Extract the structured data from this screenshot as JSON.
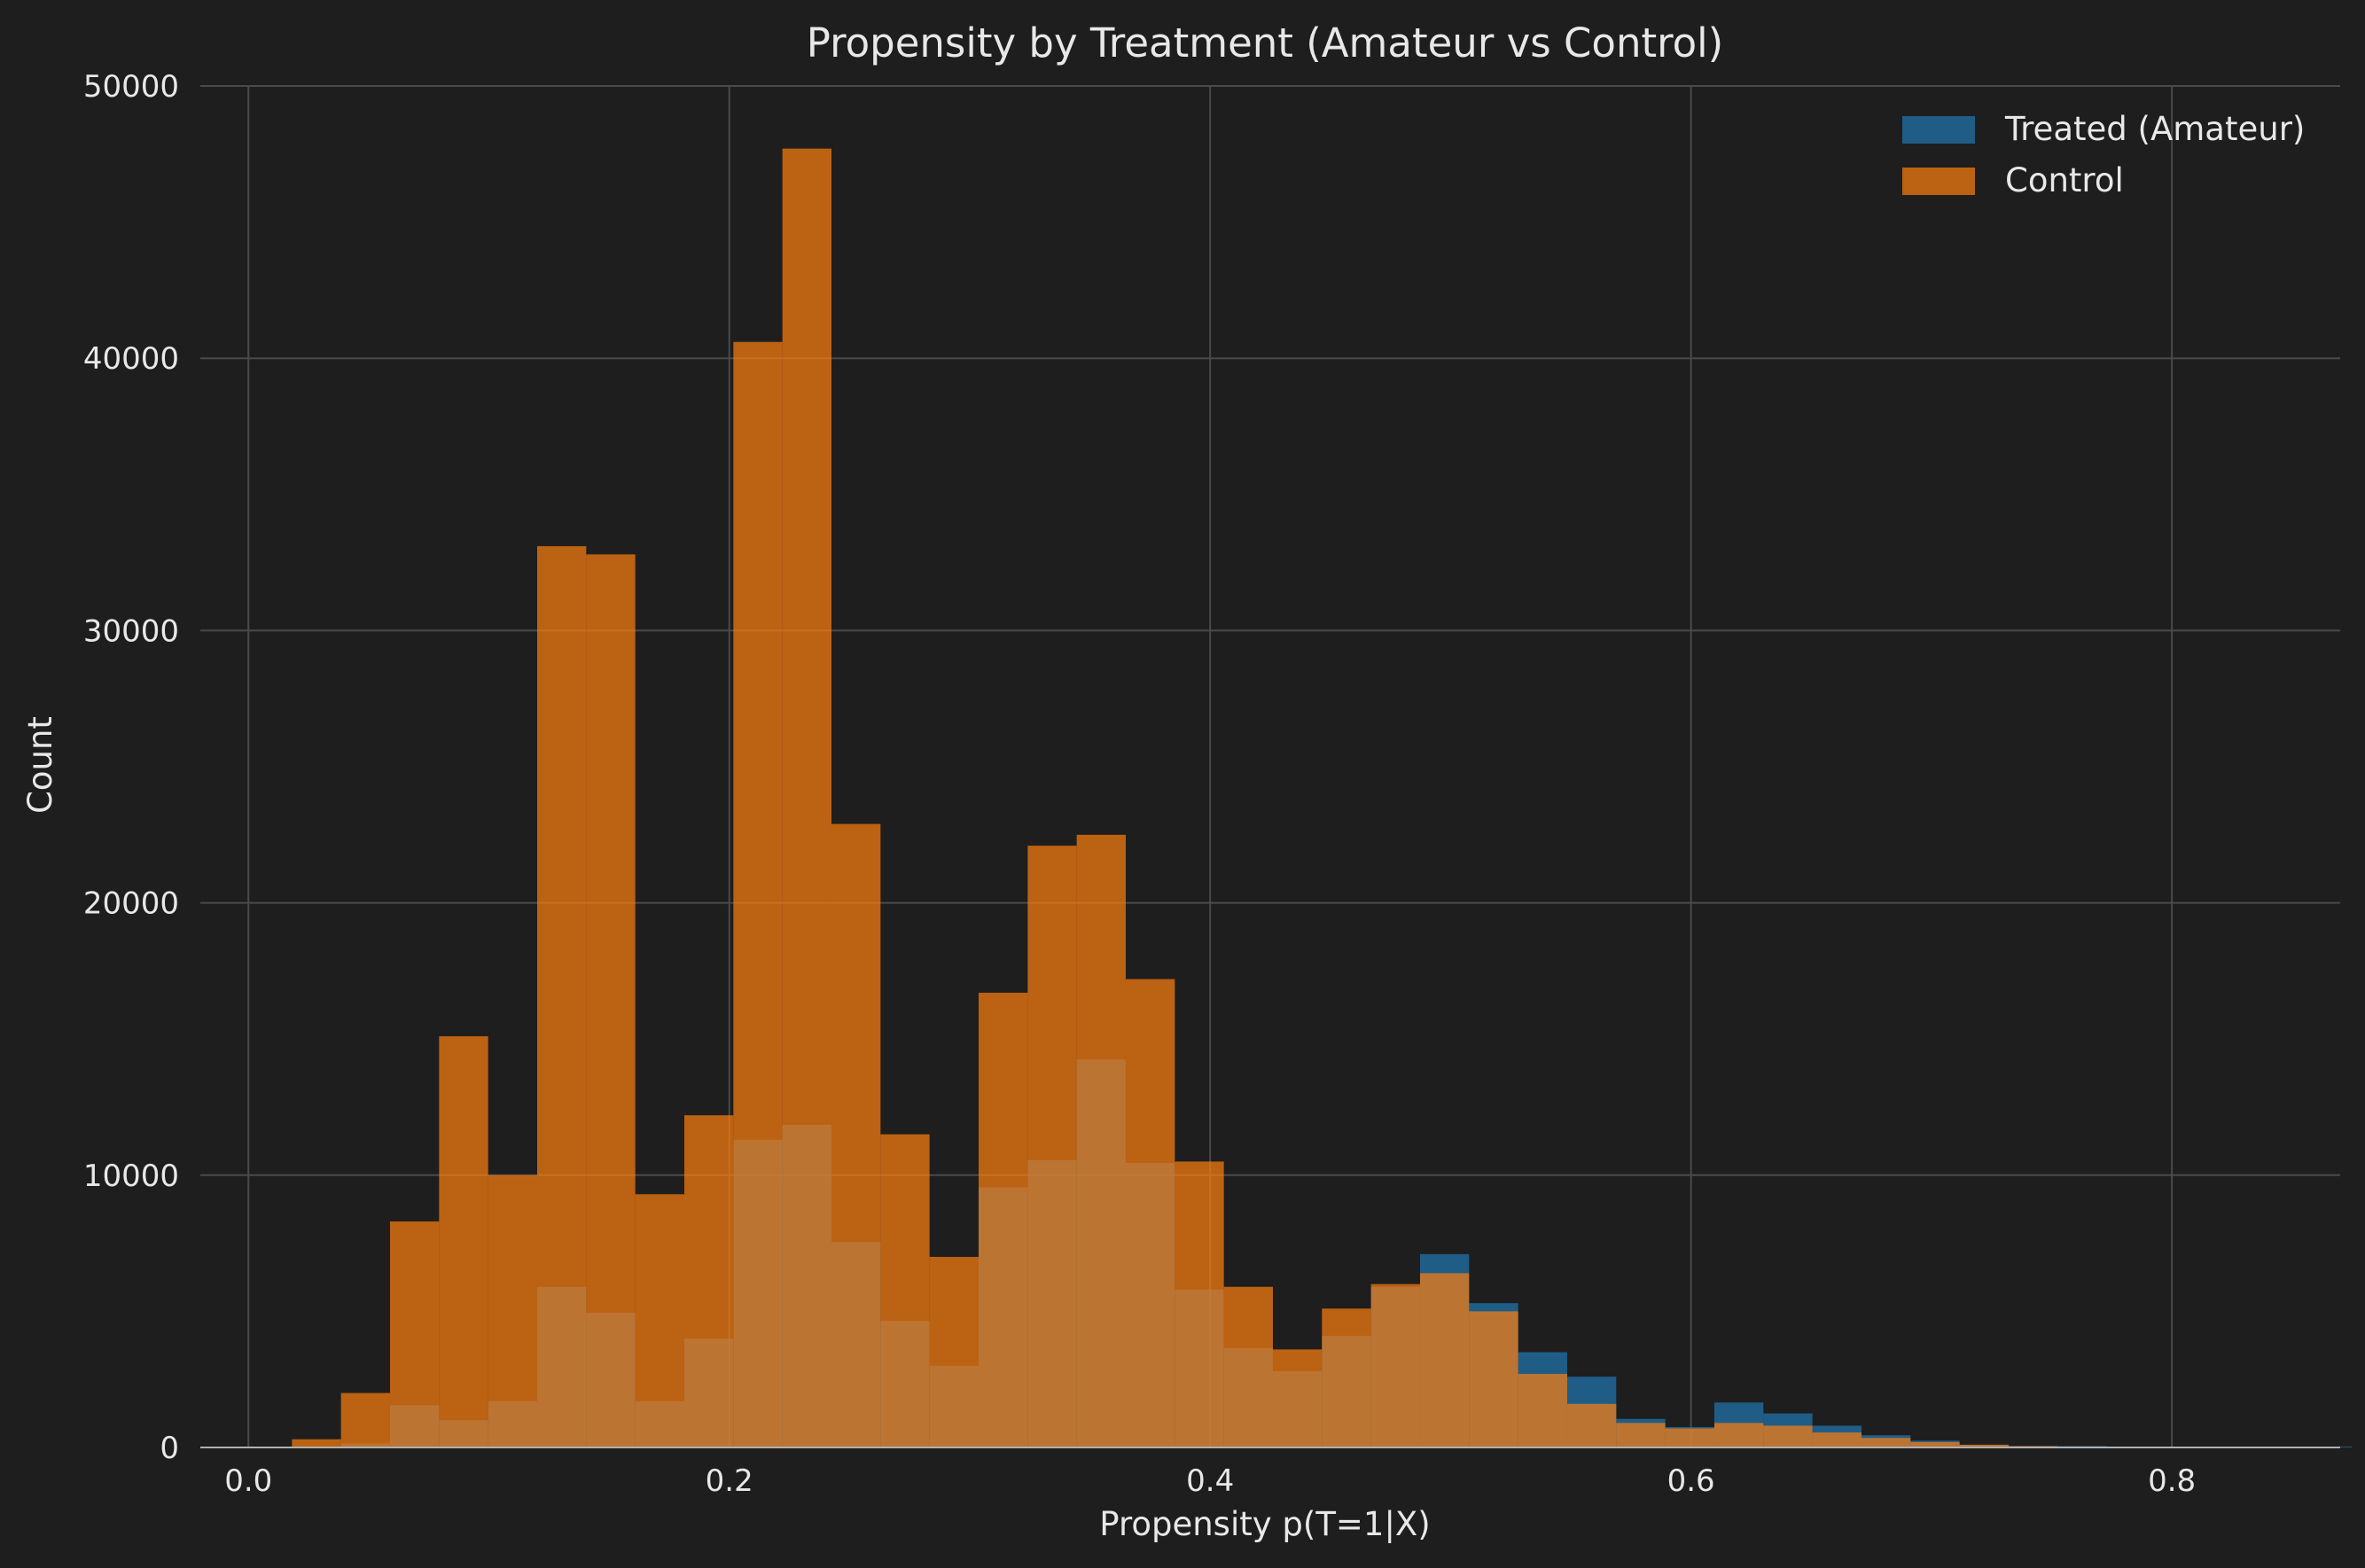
{
  "chart_data": {
    "type": "bar",
    "title": "Propensity by Treatment (Amateur vs Control)",
    "xlabel": "Propensity p(T=1|X)",
    "ylabel": "Count",
    "xlim": [
      -0.02,
      0.87
    ],
    "ylim": [
      0,
      50000
    ],
    "x_ticks": [
      0.0,
      0.2,
      0.4,
      0.6,
      0.8
    ],
    "x_tick_labels": [
      "0.0",
      "0.2",
      "0.4",
      "0.6",
      "0.8"
    ],
    "y_ticks": [
      0,
      10000,
      20000,
      30000,
      40000,
      50000
    ],
    "y_tick_labels": [
      "0",
      "10000",
      "20000",
      "30000",
      "40000",
      "50000"
    ],
    "grid": true,
    "legend_position": "top-right",
    "bin_width": 0.0204,
    "series": [
      {
        "name": "Treated (Amateur)",
        "color": "#1f77b4",
        "bin_start": 0.0181,
        "values": [
          0,
          150,
          1550,
          1000,
          1700,
          5900,
          4950,
          1700,
          4000,
          11300,
          11850,
          7550,
          4650,
          3000,
          9550,
          10550,
          14250,
          10450,
          5800,
          3650,
          2800,
          4100,
          5900,
          7100,
          5300,
          3500,
          2600,
          1050,
          750,
          1650,
          1250,
          800,
          450,
          250,
          100,
          50,
          50,
          30,
          20,
          0,
          0,
          30
        ]
      },
      {
        "name": "Control",
        "color": "#ff7f0e",
        "bin_start": 0.0181,
        "values": [
          300,
          2000,
          8300,
          15100,
          10000,
          33100,
          32800,
          9300,
          12200,
          40600,
          47700,
          22900,
          11500,
          7000,
          16700,
          22100,
          22500,
          17200,
          10500,
          5900,
          3600,
          5100,
          6000,
          6400,
          5000,
          2700,
          1600,
          900,
          700,
          900,
          800,
          550,
          350,
          200,
          100,
          50,
          30,
          20,
          10,
          0,
          0,
          0
        ]
      }
    ]
  }
}
